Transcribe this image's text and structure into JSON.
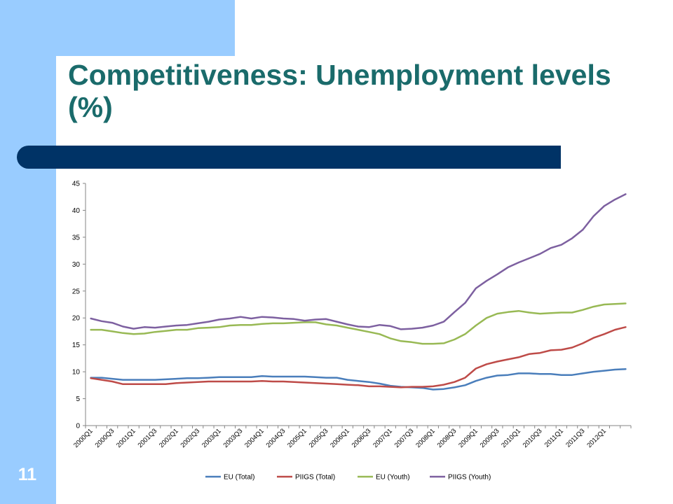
{
  "slide": {
    "title": "Competitiveness: Unemployment levels (%)",
    "number": "11",
    "colors": {
      "background_band": "#99ccff",
      "title_text": "#1a6b6b",
      "title_bar": "#003366"
    }
  },
  "chart_data": {
    "type": "line",
    "title": "",
    "xlabel": "",
    "ylabel": "",
    "ylim": [
      0,
      45
    ],
    "yticks": [
      0,
      5,
      10,
      15,
      20,
      25,
      30,
      35,
      40,
      45
    ],
    "grid": false,
    "legend_position": "bottom",
    "x": [
      "2000Q1",
      "2000Q2",
      "2000Q3",
      "2000Q4",
      "2001Q1",
      "2001Q2",
      "2001Q3",
      "2001Q4",
      "2002Q1",
      "2002Q2",
      "2002Q3",
      "2002Q4",
      "2003Q1",
      "2003Q2",
      "2003Q3",
      "2003Q4",
      "2004Q1",
      "2004Q2",
      "2004Q3",
      "2004Q4",
      "2005Q1",
      "2005Q2",
      "2005Q3",
      "2005Q4",
      "2006Q1",
      "2006Q2",
      "2006Q3",
      "2006Q4",
      "2007Q1",
      "2007Q2",
      "2007Q3",
      "2007Q4",
      "2008Q1",
      "2008Q2",
      "2008Q3",
      "2008Q4",
      "2009Q1",
      "2009Q2",
      "2009Q3",
      "2009Q4",
      "2010Q1",
      "2010Q2",
      "2010Q3",
      "2010Q4",
      "2011Q1",
      "2011Q2",
      "2011Q3",
      "2011Q4",
      "2012Q1",
      "2012Q2",
      "2012Q3"
    ],
    "x_tick_labels": [
      "2000Q1",
      "2000Q3",
      "2001Q1",
      "2001Q3",
      "2002Q1",
      "2002Q3",
      "2003Q1",
      "2003Q3",
      "2004Q1",
      "2004Q3",
      "2005Q1",
      "2005Q3",
      "2006Q1",
      "2006Q3",
      "2007Q1",
      "2007Q3",
      "2008Q1",
      "2008Q3",
      "2009Q1",
      "2009Q3",
      "2010Q1",
      "2010Q3",
      "2011Q1",
      "2011Q3",
      "2012Q1"
    ],
    "series": [
      {
        "name": "EU (Total)",
        "color": "#4a7ebb",
        "values": [
          8.9,
          8.9,
          8.7,
          8.5,
          8.5,
          8.5,
          8.5,
          8.6,
          8.7,
          8.8,
          8.8,
          8.9,
          9.0,
          9.0,
          9.0,
          9.0,
          9.2,
          9.1,
          9.1,
          9.1,
          9.1,
          9.0,
          8.9,
          8.9,
          8.5,
          8.3,
          8.1,
          7.8,
          7.4,
          7.2,
          7.1,
          7.0,
          6.7,
          6.8,
          7.1,
          7.5,
          8.3,
          8.9,
          9.3,
          9.4,
          9.7,
          9.7,
          9.6,
          9.6,
          9.4,
          9.4,
          9.7,
          10.0,
          10.2,
          10.4,
          10.5
        ]
      },
      {
        "name": "PIIGS (Total)",
        "color": "#be4b48",
        "values": [
          8.8,
          8.5,
          8.2,
          7.7,
          7.7,
          7.7,
          7.7,
          7.7,
          7.9,
          8.0,
          8.1,
          8.2,
          8.2,
          8.2,
          8.2,
          8.2,
          8.3,
          8.2,
          8.2,
          8.1,
          8.0,
          7.9,
          7.8,
          7.7,
          7.6,
          7.5,
          7.3,
          7.3,
          7.2,
          7.1,
          7.2,
          7.2,
          7.3,
          7.6,
          8.1,
          8.9,
          10.6,
          11.4,
          11.9,
          12.3,
          12.7,
          13.3,
          13.5,
          14.0,
          14.1,
          14.5,
          15.3,
          16.3,
          17.0,
          17.8,
          18.3
        ]
      },
      {
        "name": "EU (Youth)",
        "color": "#98b954",
        "values": [
          17.8,
          17.8,
          17.5,
          17.2,
          17.0,
          17.1,
          17.4,
          17.6,
          17.8,
          17.8,
          18.1,
          18.2,
          18.3,
          18.6,
          18.7,
          18.7,
          18.9,
          19.0,
          19.0,
          19.1,
          19.2,
          19.2,
          18.8,
          18.6,
          18.2,
          17.8,
          17.4,
          17.0,
          16.2,
          15.7,
          15.5,
          15.2,
          15.2,
          15.3,
          16.0,
          17.0,
          18.6,
          20.0,
          20.8,
          21.1,
          21.3,
          21.0,
          20.8,
          20.9,
          21.0,
          21.0,
          21.5,
          22.1,
          22.5,
          22.6,
          22.7
        ]
      },
      {
        "name": "PIIGS (Youth)",
        "color": "#7d60a0",
        "values": [
          19.9,
          19.4,
          19.1,
          18.4,
          18.0,
          18.3,
          18.2,
          18.4,
          18.6,
          18.7,
          19.0,
          19.3,
          19.7,
          19.9,
          20.2,
          19.9,
          20.2,
          20.1,
          19.9,
          19.8,
          19.5,
          19.7,
          19.8,
          19.3,
          18.8,
          18.4,
          18.3,
          18.7,
          18.5,
          17.9,
          18.0,
          18.2,
          18.6,
          19.3,
          21.1,
          22.8,
          25.5,
          26.9,
          28.1,
          29.4,
          30.3,
          31.1,
          31.9,
          33.0,
          33.6,
          34.8,
          36.4,
          38.9,
          40.8,
          42.0,
          43.0
        ]
      }
    ]
  }
}
